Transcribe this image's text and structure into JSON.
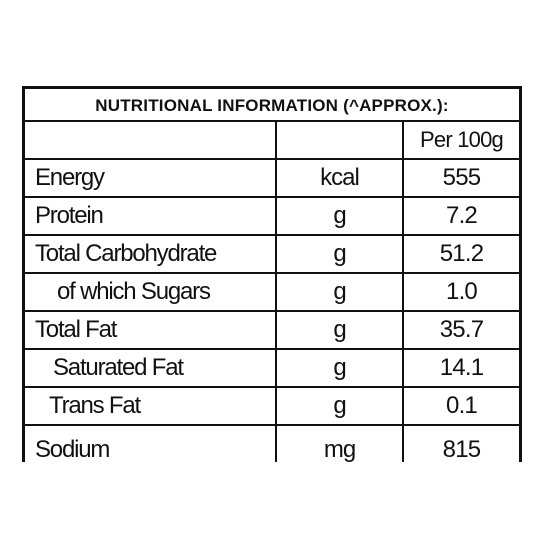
{
  "label": {
    "title": "NUTRITIONAL INFORMATION (^APPROX.):",
    "header": {
      "name": "",
      "unit": "",
      "value": "Per 100g"
    },
    "rows": [
      {
        "name": "Energy",
        "unit": "kcal",
        "value": "555"
      },
      {
        "name": "Protein",
        "unit": "g",
        "value": "7.2"
      },
      {
        "name": "Total Carbohydrate",
        "unit": "g",
        "value": "51.2"
      },
      {
        "name": "of which Sugars",
        "unit": "g",
        "value": "1.0"
      },
      {
        "name": "Total Fat",
        "unit": "g",
        "value": "35.7"
      },
      {
        "name": "Saturated Fat",
        "unit": "g",
        "value": "14.1"
      },
      {
        "name": "Trans Fat",
        "unit": "g",
        "value": "0.1"
      },
      {
        "name": "Sodium",
        "unit": "mg",
        "value": "815"
      }
    ]
  }
}
